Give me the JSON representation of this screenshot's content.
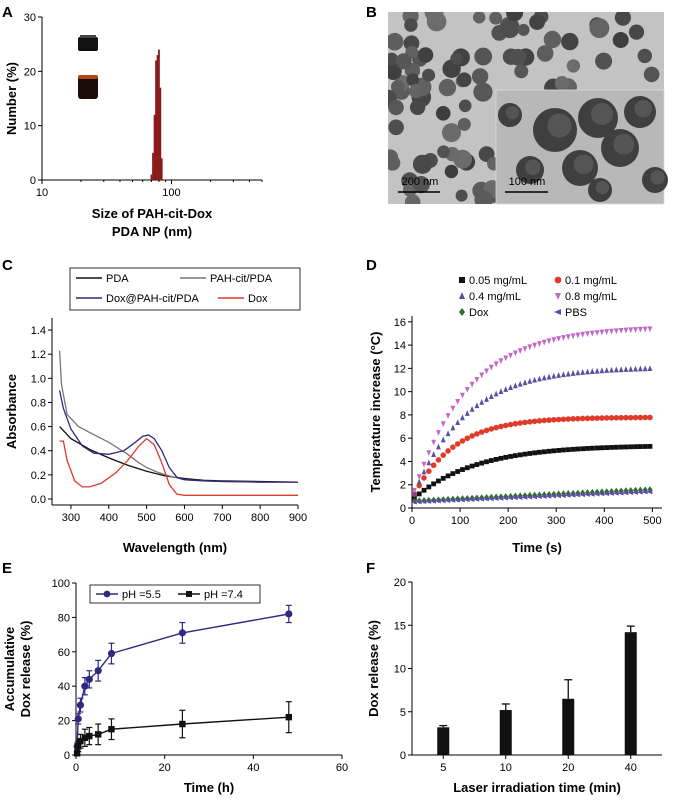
{
  "colors": {
    "red": "#e03a2b",
    "darkred": "#8b1a1a",
    "blue": "#5a4fa0",
    "navy": "#2e2a80",
    "green": "#2f6e2f",
    "magenta": "#c466c8",
    "gray": "#777777",
    "black": "#111111"
  },
  "chart_data": [
    {
      "panel": "A",
      "type": "bar",
      "xscale": "log",
      "xlabel": [
        "Size of PAH-cit-Dox",
        "PDA NP (nm)"
      ],
      "ylabel": "Number (%)",
      "xlim": [
        10,
        500
      ],
      "ylim": [
        0,
        30
      ],
      "xticks": [
        10,
        100
      ],
      "yticks": [
        0,
        10,
        20,
        30
      ],
      "bins": [
        70,
        72,
        74,
        76,
        78,
        80,
        82,
        84
      ],
      "values": [
        1,
        5,
        12,
        22,
        23,
        24,
        17,
        4
      ]
    },
    {
      "panel": "B",
      "type": "image",
      "scalebar_main": "200 nm",
      "scalebar_inset": "100 nm"
    },
    {
      "panel": "C",
      "type": "line",
      "xlabel": "Wavelength (nm)",
      "ylabel": "Absorbance",
      "xlim": [
        250,
        900
      ],
      "ylim": [
        -0.05,
        1.5
      ],
      "xticks": [
        300,
        400,
        500,
        600,
        700,
        800,
        900
      ],
      "yticks": [
        0.0,
        0.2,
        0.4,
        0.6,
        0.8,
        1.0,
        1.2,
        1.4
      ],
      "series": [
        {
          "name": "PDA",
          "color": "#111111",
          "x": [
            270,
            300,
            350,
            400,
            450,
            500,
            550,
            600,
            650,
            700,
            800,
            900
          ],
          "y": [
            0.6,
            0.5,
            0.41,
            0.34,
            0.28,
            0.23,
            0.19,
            0.17,
            0.155,
            0.15,
            0.145,
            0.14
          ]
        },
        {
          "name": "PAH-cit/PDA",
          "color": "#777777",
          "x": [
            270,
            275,
            290,
            320,
            350,
            400,
            450,
            480,
            500,
            530,
            560,
            600,
            650,
            700,
            800,
            900
          ],
          "y": [
            1.23,
            0.95,
            0.7,
            0.6,
            0.55,
            0.47,
            0.37,
            0.3,
            0.26,
            0.22,
            0.19,
            0.16,
            0.15,
            0.145,
            0.14,
            0.14
          ]
        },
        {
          "name": "Dox@PAH-cit/PDA",
          "color": "#2e2a80",
          "x": [
            270,
            280,
            300,
            330,
            360,
            400,
            440,
            470,
            490,
            505,
            520,
            540,
            560,
            580,
            600,
            650,
            700,
            800,
            900
          ],
          "y": [
            0.9,
            0.75,
            0.58,
            0.44,
            0.38,
            0.37,
            0.4,
            0.47,
            0.52,
            0.53,
            0.5,
            0.4,
            0.26,
            0.18,
            0.16,
            0.15,
            0.145,
            0.14,
            0.14
          ]
        },
        {
          "name": "Dox",
          "color": "#e03a2b",
          "x": [
            270,
            280,
            290,
            310,
            330,
            350,
            380,
            420,
            450,
            480,
            500,
            520,
            540,
            560,
            580,
            600,
            700,
            800,
            900
          ],
          "y": [
            0.48,
            0.48,
            0.32,
            0.15,
            0.1,
            0.1,
            0.13,
            0.22,
            0.32,
            0.44,
            0.5,
            0.45,
            0.3,
            0.12,
            0.04,
            0.03,
            0.03,
            0.03,
            0.03
          ]
        }
      ],
      "legend": [
        "PDA",
        "PAH-cit/PDA",
        "Dox@PAH-cit/PDA",
        "Dox"
      ]
    },
    {
      "panel": "D",
      "type": "scatter",
      "xlabel": "Time (s)",
      "ylabel": "Temperature increase (°C)",
      "xlim": [
        0,
        520
      ],
      "ylim": [
        0,
        16.5
      ],
      "xticks": [
        0,
        100,
        200,
        300,
        400,
        500
      ],
      "yticks": [
        0,
        2,
        4,
        6,
        8,
        10,
        12,
        14,
        16
      ],
      "model": "plateau * (1 - exp(-t/tau))",
      "series": [
        {
          "name": "0.05 mg/mL",
          "marker": "square",
          "color": "#111111",
          "plateau": 5.4,
          "tau": 130,
          "start": 0.7
        },
        {
          "name": "0.1 mg/mL",
          "marker": "circle",
          "color": "#e03a2b",
          "plateau": 7.8,
          "tau": 85,
          "start": 0.8
        },
        {
          "name": "0.4 mg/mL",
          "marker": "triangle-up",
          "color": "#5a4fa0",
          "plateau": 12.1,
          "tau": 110,
          "start": 0.8
        },
        {
          "name": "0.8 mg/mL",
          "marker": "triangle-down",
          "color": "#c466c8",
          "plateau": 15.6,
          "tau": 115,
          "start": 0.9
        },
        {
          "name": "Dox",
          "marker": "diamond",
          "color": "#2f6e2f",
          "linear_end": 1.6,
          "start": 0.6
        },
        {
          "name": "PBS",
          "marker": "triangle-left",
          "color": "#5a4fa0",
          "linear_end": 1.4,
          "start": 0.5
        }
      ]
    },
    {
      "panel": "E",
      "type": "line",
      "xlabel": "Time (h)",
      "ylabel": [
        "Accumulative",
        "Dox release (%)"
      ],
      "xlim": [
        0,
        60
      ],
      "ylim": [
        0,
        100
      ],
      "xticks": [
        0,
        20,
        40,
        60
      ],
      "yticks": [
        0,
        20,
        40,
        60,
        80,
        100
      ],
      "series": [
        {
          "name": "pH =5.5",
          "marker": "circle",
          "color": "#2e2a80",
          "x": [
            0.25,
            0.5,
            1,
            2,
            3,
            5,
            8,
            24,
            48
          ],
          "y": [
            5,
            21,
            29,
            40,
            44,
            49,
            59,
            71,
            82
          ],
          "err": [
            2,
            3,
            4,
            5,
            5,
            6,
            6,
            6,
            5
          ]
        },
        {
          "name": "pH =7.4",
          "marker": "square",
          "color": "#111111",
          "x": [
            0.25,
            0.5,
            1,
            2,
            3,
            5,
            8,
            24,
            48
          ],
          "y": [
            1,
            5,
            8,
            10,
            11,
            12,
            15,
            18,
            22
          ],
          "err": [
            1,
            3,
            4,
            5,
            5,
            6,
            6,
            8,
            9
          ]
        }
      ],
      "legend": [
        "pH =5.5",
        "pH =7.4"
      ]
    },
    {
      "panel": "F",
      "type": "bar",
      "xlabel": "Laser irradiation time (min)",
      "ylabel": "Dox release (%)",
      "ylim": [
        0,
        20
      ],
      "yticks": [
        0,
        5,
        10,
        15,
        20
      ],
      "categories": [
        "5",
        "10",
        "20",
        "40"
      ],
      "values": [
        3.2,
        5.2,
        6.5,
        14.2
      ],
      "err": [
        0.2,
        0.7,
        2.2,
        0.7
      ]
    }
  ],
  "panels": {
    "A": "A",
    "B": "B",
    "C": "C",
    "D": "D",
    "E": "E",
    "F": "F"
  }
}
